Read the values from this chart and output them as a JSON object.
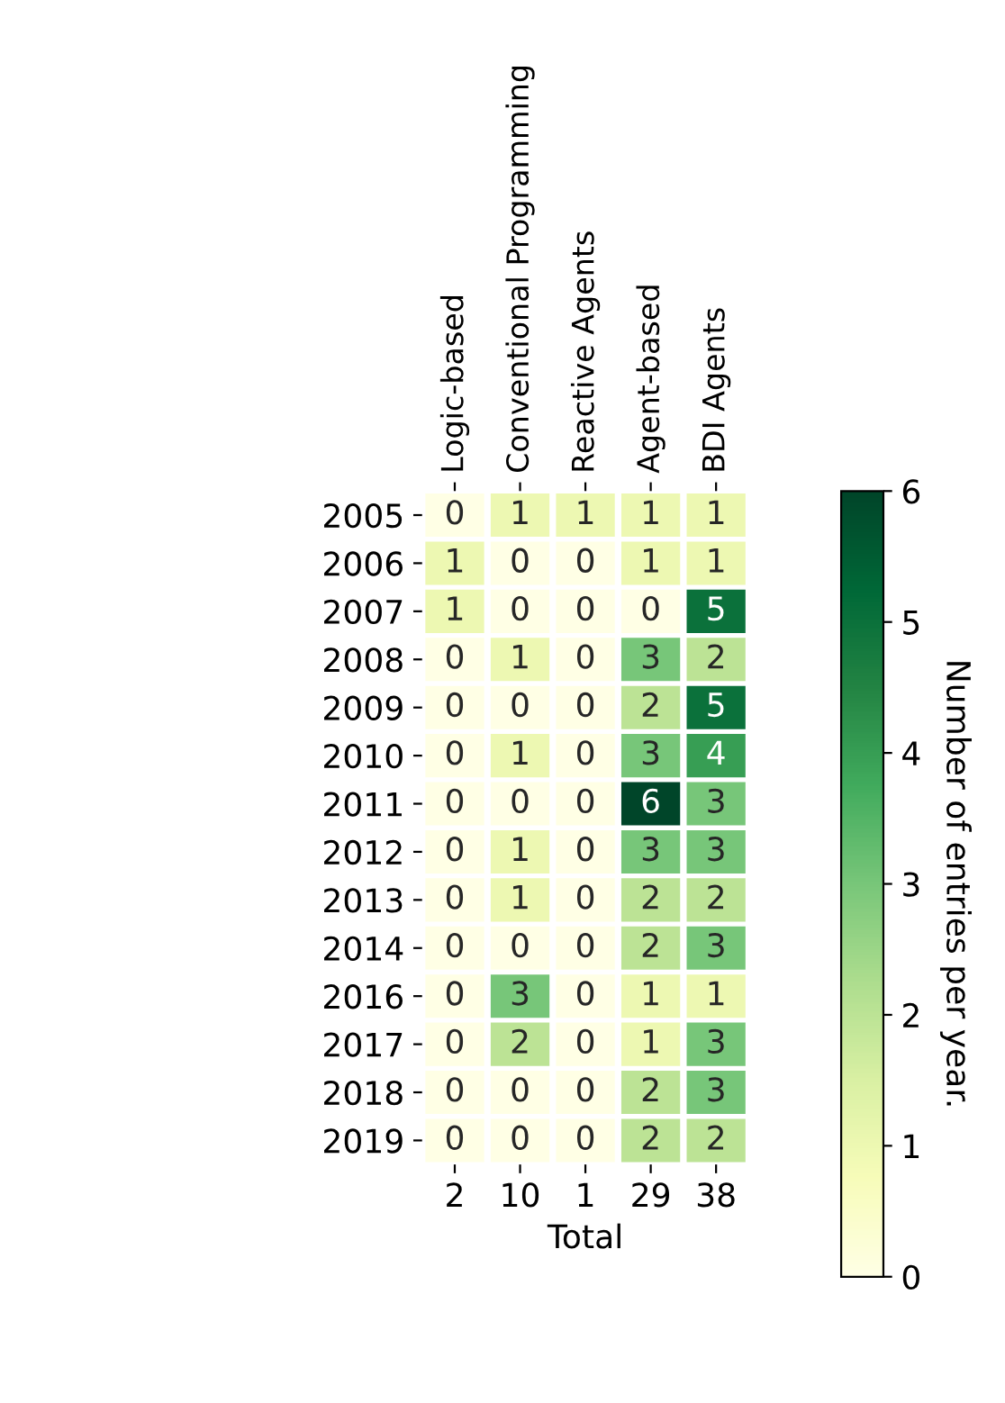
{
  "chart_data": {
    "type": "heatmap",
    "categories": [
      "Logic-based",
      "Conventional Programming",
      "Reactive Agents",
      "Agent-based",
      "BDI Agents"
    ],
    "y_categories": [
      "2005",
      "2006",
      "2007",
      "2008",
      "2009",
      "2010",
      "2011",
      "2012",
      "2013",
      "2014",
      "2016",
      "2017",
      "2018",
      "2019"
    ],
    "cells": [
      [
        0,
        1,
        1,
        1,
        1
      ],
      [
        1,
        0,
        0,
        1,
        1
      ],
      [
        1,
        0,
        0,
        0,
        5
      ],
      [
        0,
        1,
        0,
        3,
        2
      ],
      [
        0,
        0,
        0,
        2,
        5
      ],
      [
        0,
        1,
        0,
        3,
        4
      ],
      [
        0,
        0,
        0,
        6,
        3
      ],
      [
        0,
        1,
        0,
        3,
        3
      ],
      [
        0,
        1,
        0,
        2,
        2
      ],
      [
        0,
        0,
        0,
        2,
        3
      ],
      [
        0,
        3,
        0,
        1,
        1
      ],
      [
        0,
        2,
        0,
        1,
        3
      ],
      [
        0,
        0,
        0,
        2,
        3
      ],
      [
        0,
        0,
        0,
        2,
        2
      ]
    ],
    "data_labels": true,
    "totals": [
      "2",
      "10",
      "1",
      "29",
      "38"
    ],
    "xlabel": "Total",
    "clim": [
      0,
      6
    ],
    "cticks": [
      0,
      1,
      2,
      3,
      4,
      5,
      6
    ],
    "clabel": "Number of entries per year."
  }
}
